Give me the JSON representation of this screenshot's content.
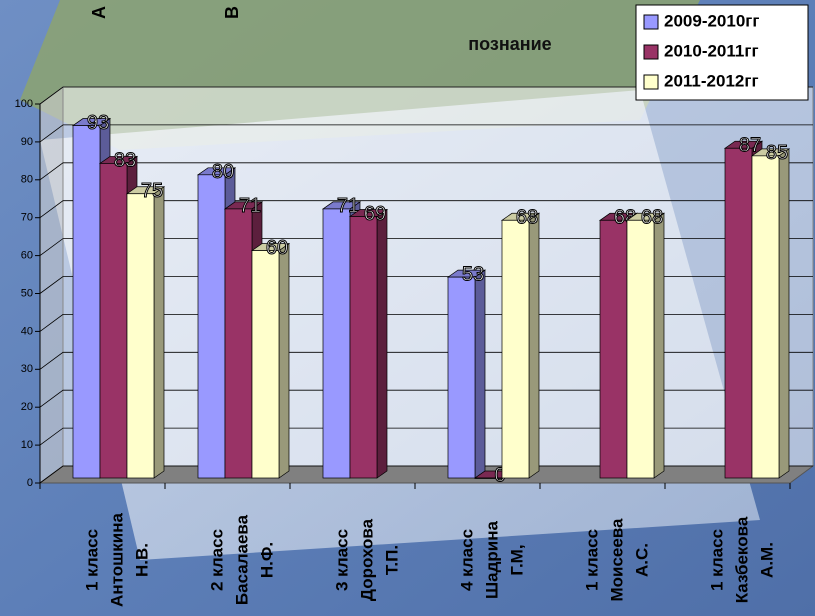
{
  "chart_data": {
    "type": "bar3d",
    "title": "познание",
    "annotations": [
      "А",
      "В"
    ],
    "categories": [
      [
        "1 класс",
        "Антошкина",
        "Н.В."
      ],
      [
        "2 класс",
        "Басалаева",
        "Н.Ф."
      ],
      [
        "3 класс",
        "Дорохова",
        "Т.П."
      ],
      [
        "4 класс",
        "Шадрина",
        "Г.М,"
      ],
      [
        "1 класс",
        "Моисеева",
        "А.С."
      ],
      [
        "1 класс",
        "Казбекова",
        "А.М."
      ]
    ],
    "series": [
      {
        "name": "2009-2010гг",
        "color": "#9999ff",
        "values": [
          93,
          80,
          71,
          53,
          null,
          null
        ]
      },
      {
        "name": "2010-2011гг",
        "color": "#993366",
        "values": [
          83,
          71,
          69,
          0,
          68,
          87
        ]
      },
      {
        "name": "2011-2012гг",
        "color": "#ffffcc",
        "values": [
          75,
          60,
          null,
          68,
          68,
          85
        ]
      }
    ],
    "ylim": [
      0,
      100
    ],
    "yticks": [
      0,
      10,
      20,
      30,
      40,
      50,
      60,
      70,
      80,
      90,
      100
    ],
    "grid": true,
    "legend": "top-right"
  }
}
